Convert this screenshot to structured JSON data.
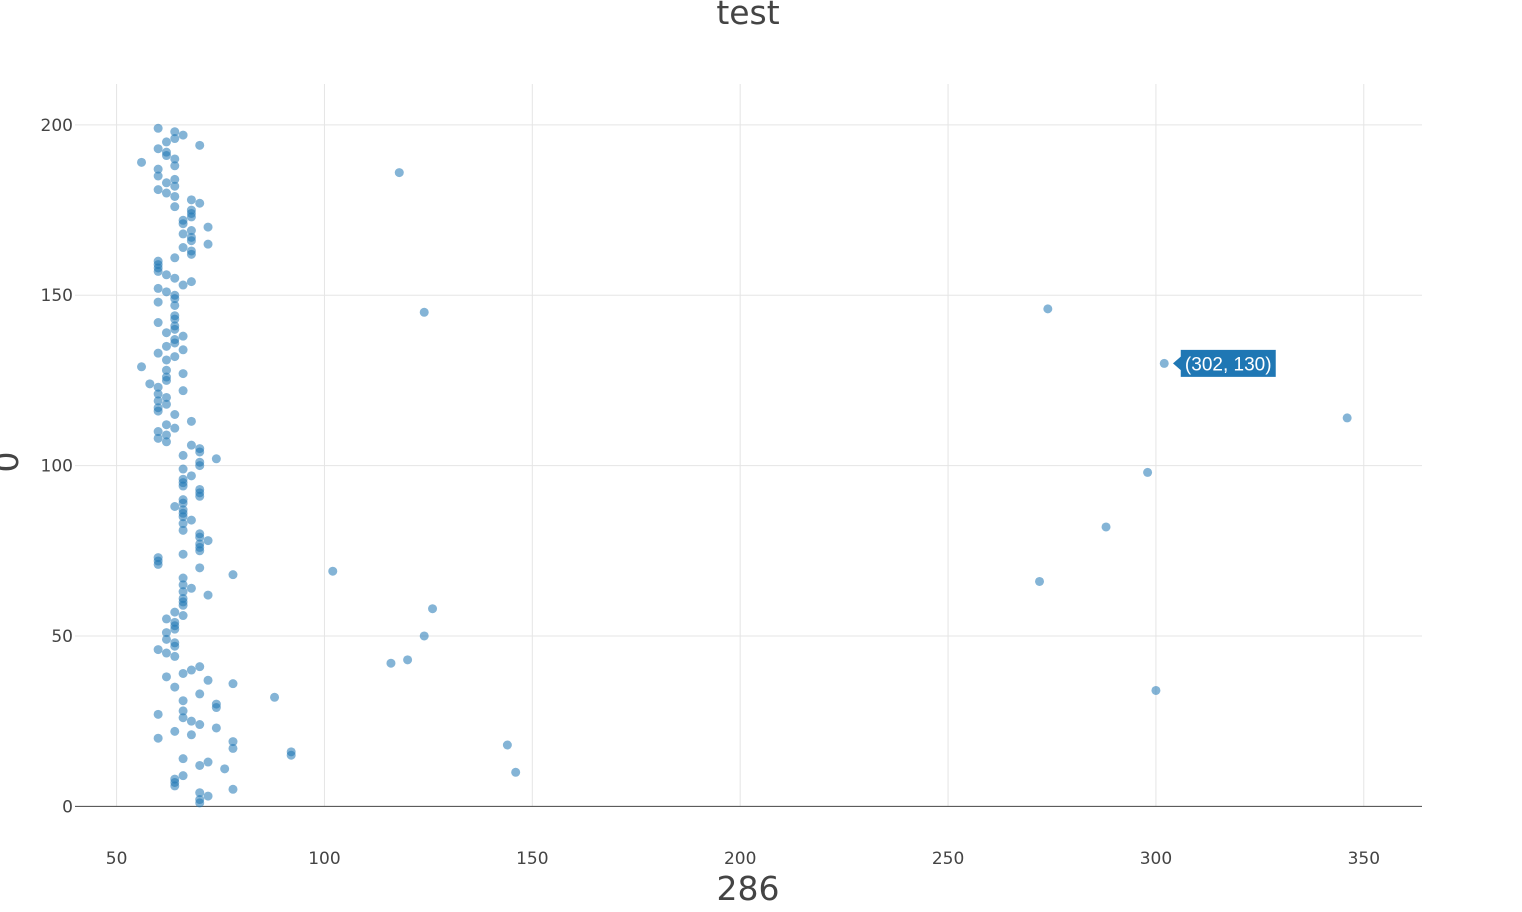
{
  "chart_data": {
    "type": "scatter",
    "title": "test",
    "xlabel": "286",
    "ylabel": "0",
    "xlim": [
      40,
      364
    ],
    "ylim": [
      -9,
      212
    ],
    "x_ticks": [
      50,
      100,
      150,
      200,
      250,
      300,
      350
    ],
    "y_ticks": [
      0,
      50,
      100,
      150,
      200
    ],
    "grid": true,
    "legend": "none",
    "marker_color": "#1f77b4",
    "hover_label": {
      "text": "(302, 130)",
      "x": 302,
      "y": 130
    },
    "points": [
      [
        60,
        199
      ],
      [
        64,
        198
      ],
      [
        66,
        197
      ],
      [
        64,
        196
      ],
      [
        62,
        195
      ],
      [
        70,
        194
      ],
      [
        60,
        193
      ],
      [
        62,
        192
      ],
      [
        62,
        191
      ],
      [
        64,
        190
      ],
      [
        56,
        189
      ],
      [
        64,
        188
      ],
      [
        60,
        187
      ],
      [
        118,
        186
      ],
      [
        60,
        185
      ],
      [
        64,
        184
      ],
      [
        62,
        183
      ],
      [
        64,
        182
      ],
      [
        60,
        181
      ],
      [
        62,
        180
      ],
      [
        64,
        179
      ],
      [
        68,
        178
      ],
      [
        70,
        177
      ],
      [
        64,
        176
      ],
      [
        68,
        175
      ],
      [
        68,
        174
      ],
      [
        68,
        173
      ],
      [
        66,
        172
      ],
      [
        66,
        171
      ],
      [
        72,
        170
      ],
      [
        68,
        169
      ],
      [
        66,
        168
      ],
      [
        68,
        167
      ],
      [
        68,
        166
      ],
      [
        72,
        165
      ],
      [
        66,
        164
      ],
      [
        68,
        163
      ],
      [
        68,
        162
      ],
      [
        64,
        161
      ],
      [
        60,
        160
      ],
      [
        60,
        159
      ],
      [
        60,
        158
      ],
      [
        60,
        157
      ],
      [
        62,
        156
      ],
      [
        64,
        155
      ],
      [
        68,
        154
      ],
      [
        66,
        153
      ],
      [
        60,
        152
      ],
      [
        62,
        151
      ],
      [
        64,
        150
      ],
      [
        64,
        149
      ],
      [
        60,
        148
      ],
      [
        64,
        147
      ],
      [
        274,
        146
      ],
      [
        124,
        145
      ],
      [
        64,
        144
      ],
      [
        64,
        143
      ],
      [
        60,
        142
      ],
      [
        64,
        141
      ],
      [
        64,
        140
      ],
      [
        62,
        139
      ],
      [
        66,
        138
      ],
      [
        64,
        137
      ],
      [
        64,
        136
      ],
      [
        62,
        135
      ],
      [
        66,
        134
      ],
      [
        60,
        133
      ],
      [
        64,
        132
      ],
      [
        62,
        131
      ],
      [
        302,
        130
      ],
      [
        56,
        129
      ],
      [
        62,
        128
      ],
      [
        66,
        127
      ],
      [
        62,
        126
      ],
      [
        62,
        125
      ],
      [
        58,
        124
      ],
      [
        60,
        123
      ],
      [
        66,
        122
      ],
      [
        60,
        121
      ],
      [
        62,
        120
      ],
      [
        60,
        119
      ],
      [
        62,
        118
      ],
      [
        60,
        117
      ],
      [
        60,
        116
      ],
      [
        64,
        115
      ],
      [
        346,
        114
      ],
      [
        68,
        113
      ],
      [
        62,
        112
      ],
      [
        64,
        111
      ],
      [
        60,
        110
      ],
      [
        62,
        109
      ],
      [
        60,
        108
      ],
      [
        62,
        107
      ],
      [
        68,
        106
      ],
      [
        70,
        105
      ],
      [
        70,
        104
      ],
      [
        66,
        103
      ],
      [
        74,
        102
      ],
      [
        70,
        101
      ],
      [
        70,
        100
      ],
      [
        66,
        99
      ],
      [
        298,
        98
      ],
      [
        68,
        97
      ],
      [
        66,
        96
      ],
      [
        66,
        95
      ],
      [
        66,
        94
      ],
      [
        70,
        93
      ],
      [
        70,
        92
      ],
      [
        70,
        91
      ],
      [
        66,
        90
      ],
      [
        66,
        89
      ],
      [
        64,
        88
      ],
      [
        66,
        87
      ],
      [
        66,
        86
      ],
      [
        66,
        85
      ],
      [
        68,
        84
      ],
      [
        66,
        83
      ],
      [
        288,
        82
      ],
      [
        66,
        81
      ],
      [
        70,
        80
      ],
      [
        70,
        79
      ],
      [
        72,
        78
      ],
      [
        70,
        77
      ],
      [
        70,
        76
      ],
      [
        70,
        75
      ],
      [
        66,
        74
      ],
      [
        60,
        73
      ],
      [
        60,
        72
      ],
      [
        60,
        71
      ],
      [
        70,
        70
      ],
      [
        102,
        69
      ],
      [
        78,
        68
      ],
      [
        66,
        67
      ],
      [
        272,
        66
      ],
      [
        66,
        65
      ],
      [
        68,
        64
      ],
      [
        66,
        63
      ],
      [
        72,
        62
      ],
      [
        66,
        61
      ],
      [
        66,
        60
      ],
      [
        66,
        59
      ],
      [
        126,
        58
      ],
      [
        64,
        57
      ],
      [
        66,
        56
      ],
      [
        62,
        55
      ],
      [
        64,
        54
      ],
      [
        64,
        53
      ],
      [
        64,
        52
      ],
      [
        62,
        51
      ],
      [
        124,
        50
      ],
      [
        62,
        49
      ],
      [
        64,
        48
      ],
      [
        64,
        47
      ],
      [
        60,
        46
      ],
      [
        62,
        45
      ],
      [
        64,
        44
      ],
      [
        120,
        43
      ],
      [
        116,
        42
      ],
      [
        70,
        41
      ],
      [
        68,
        40
      ],
      [
        66,
        39
      ],
      [
        62,
        38
      ],
      [
        72,
        37
      ],
      [
        78,
        36
      ],
      [
        64,
        35
      ],
      [
        300,
        34
      ],
      [
        70,
        33
      ],
      [
        88,
        32
      ],
      [
        66,
        31
      ],
      [
        74,
        30
      ],
      [
        74,
        29
      ],
      [
        66,
        28
      ],
      [
        60,
        27
      ],
      [
        66,
        26
      ],
      [
        68,
        25
      ],
      [
        70,
        24
      ],
      [
        74,
        23
      ],
      [
        64,
        22
      ],
      [
        68,
        21
      ],
      [
        60,
        20
      ],
      [
        78,
        19
      ],
      [
        144,
        18
      ],
      [
        78,
        17
      ],
      [
        92,
        16
      ],
      [
        92,
        15
      ],
      [
        66,
        14
      ],
      [
        72,
        13
      ],
      [
        70,
        12
      ],
      [
        76,
        11
      ],
      [
        146,
        10
      ],
      [
        66,
        9
      ],
      [
        64,
        8
      ],
      [
        64,
        7
      ],
      [
        64,
        6
      ],
      [
        78,
        5
      ],
      [
        70,
        4
      ],
      [
        72,
        3
      ],
      [
        70,
        2
      ],
      [
        70,
        1
      ]
    ]
  }
}
